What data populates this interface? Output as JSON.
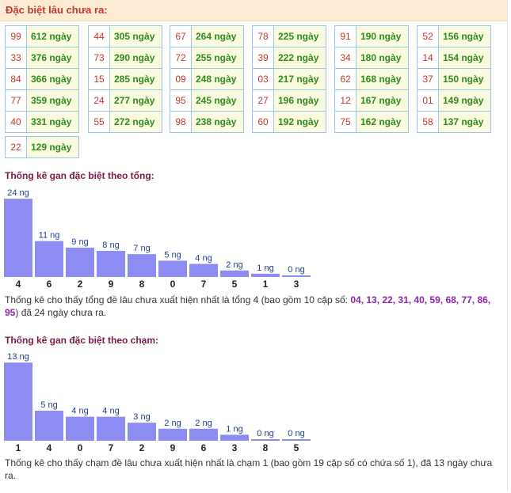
{
  "header": {
    "title": "Đặc biệt lâu chưa ra:"
  },
  "special_groups": [
    [
      {
        "num": "99",
        "days": "612 ngày"
      },
      {
        "num": "33",
        "days": "376 ngày"
      },
      {
        "num": "84",
        "days": "366 ngày"
      },
      {
        "num": "77",
        "days": "359 ngày"
      },
      {
        "num": "40",
        "days": "331 ngày"
      }
    ],
    [
      {
        "num": "44",
        "days": "305 ngày"
      },
      {
        "num": "73",
        "days": "290 ngày"
      },
      {
        "num": "15",
        "days": "285 ngày"
      },
      {
        "num": "24",
        "days": "277 ngày"
      },
      {
        "num": "55",
        "days": "272 ngày"
      }
    ],
    [
      {
        "num": "67",
        "days": "264 ngày"
      },
      {
        "num": "72",
        "days": "255 ngày"
      },
      {
        "num": "09",
        "days": "248 ngày"
      },
      {
        "num": "95",
        "days": "245 ngày"
      },
      {
        "num": "98",
        "days": "238 ngày"
      }
    ],
    [
      {
        "num": "78",
        "days": "225 ngày"
      },
      {
        "num": "39",
        "days": "222 ngày"
      },
      {
        "num": "03",
        "days": "217 ngày"
      },
      {
        "num": "27",
        "days": "196 ngày"
      },
      {
        "num": "60",
        "days": "192 ngày"
      }
    ],
    [
      {
        "num": "91",
        "days": "190 ngày"
      },
      {
        "num": "34",
        "days": "180 ngày"
      },
      {
        "num": "62",
        "days": "168 ngày"
      },
      {
        "num": "12",
        "days": "167 ngày"
      },
      {
        "num": "75",
        "days": "162 ngày"
      }
    ],
    [
      {
        "num": "52",
        "days": "156 ngày"
      },
      {
        "num": "14",
        "days": "154 ngày"
      },
      {
        "num": "37",
        "days": "150 ngày"
      },
      {
        "num": "01",
        "days": "149 ngày"
      },
      {
        "num": "58",
        "days": "137 ngày"
      }
    ],
    [
      {
        "num": "22",
        "days": "129 ngày"
      }
    ]
  ],
  "chart_data": [
    {
      "type": "bar",
      "title": "Thống kê gan đặc biệt theo tổng:",
      "categories": [
        "4",
        "6",
        "2",
        "9",
        "8",
        "0",
        "7",
        "5",
        "1",
        "3"
      ],
      "values": [
        24,
        11,
        9,
        8,
        7,
        5,
        4,
        2,
        1,
        0
      ],
      "value_labels": [
        "24 ng",
        "11 ng",
        "9 ng",
        "8 ng",
        "7 ng",
        "5 ng",
        "4 ng",
        "2 ng",
        "1 ng",
        "0 ng"
      ],
      "color": "#8c8cf2"
    },
    {
      "type": "bar",
      "title": "Thống kê gan đặc biệt theo chạm:",
      "categories": [
        "1",
        "4",
        "0",
        "7",
        "2",
        "9",
        "6",
        "3",
        "8",
        "5"
      ],
      "values": [
        13,
        5,
        4,
        4,
        3,
        2,
        2,
        1,
        0,
        0
      ],
      "value_labels": [
        "13 ng",
        "5 ng",
        "4 ng",
        "4 ng",
        "3 ng",
        "2 ng",
        "2 ng",
        "1 ng",
        "0 ng",
        "0 ng"
      ],
      "color": "#8c8cf2"
    }
  ],
  "notes": {
    "tong_prefix": "Thống kê cho thấy tổng đề lâu chưa xuất hiện nhất là tổng 4 (bao gồm 10 cặp số: ",
    "tong_numbers": "04, 13, 22, 31, 40, 59, 68, 77, 86, 95",
    "tong_suffix": ") đã 24 ngày chưa ra.",
    "cham_text": "Thống kê cho thấy chạm đề lâu chưa xuất hiện nhất là chạm 1 (bao gồm 19 cặp số có chứa số 1), đã 13 ngày chưa ra."
  }
}
